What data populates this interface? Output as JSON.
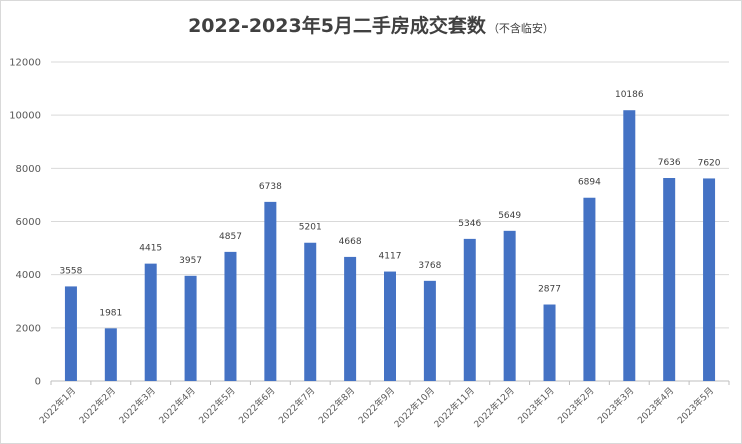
{
  "chart_data": {
    "type": "bar",
    "title": "2022-2023年5月二手房成交套数",
    "subtitle": "（不含临安）",
    "xlabel": "",
    "ylabel": "",
    "ylim": [
      0,
      12000
    ],
    "yticks": [
      0,
      2000,
      4000,
      6000,
      8000,
      10000,
      12000
    ],
    "grid": true,
    "bar_color": "#4472C4",
    "categories": [
      "2022年1月",
      "2022年2月",
      "2022年3月",
      "2022年4月",
      "2022年5月",
      "2022年6月",
      "2022年7月",
      "2022年8月",
      "2022年9月",
      "2022年10月",
      "2022年11月",
      "2022年12月",
      "2023年1月",
      "2023年2月",
      "2023年3月",
      "2023年4月",
      "2023年5月"
    ],
    "values": [
      3558,
      1981,
      4415,
      3957,
      4857,
      6738,
      5201,
      4668,
      4117,
      3768,
      5346,
      5649,
      2877,
      6894,
      10186,
      7636,
      7620
    ]
  }
}
